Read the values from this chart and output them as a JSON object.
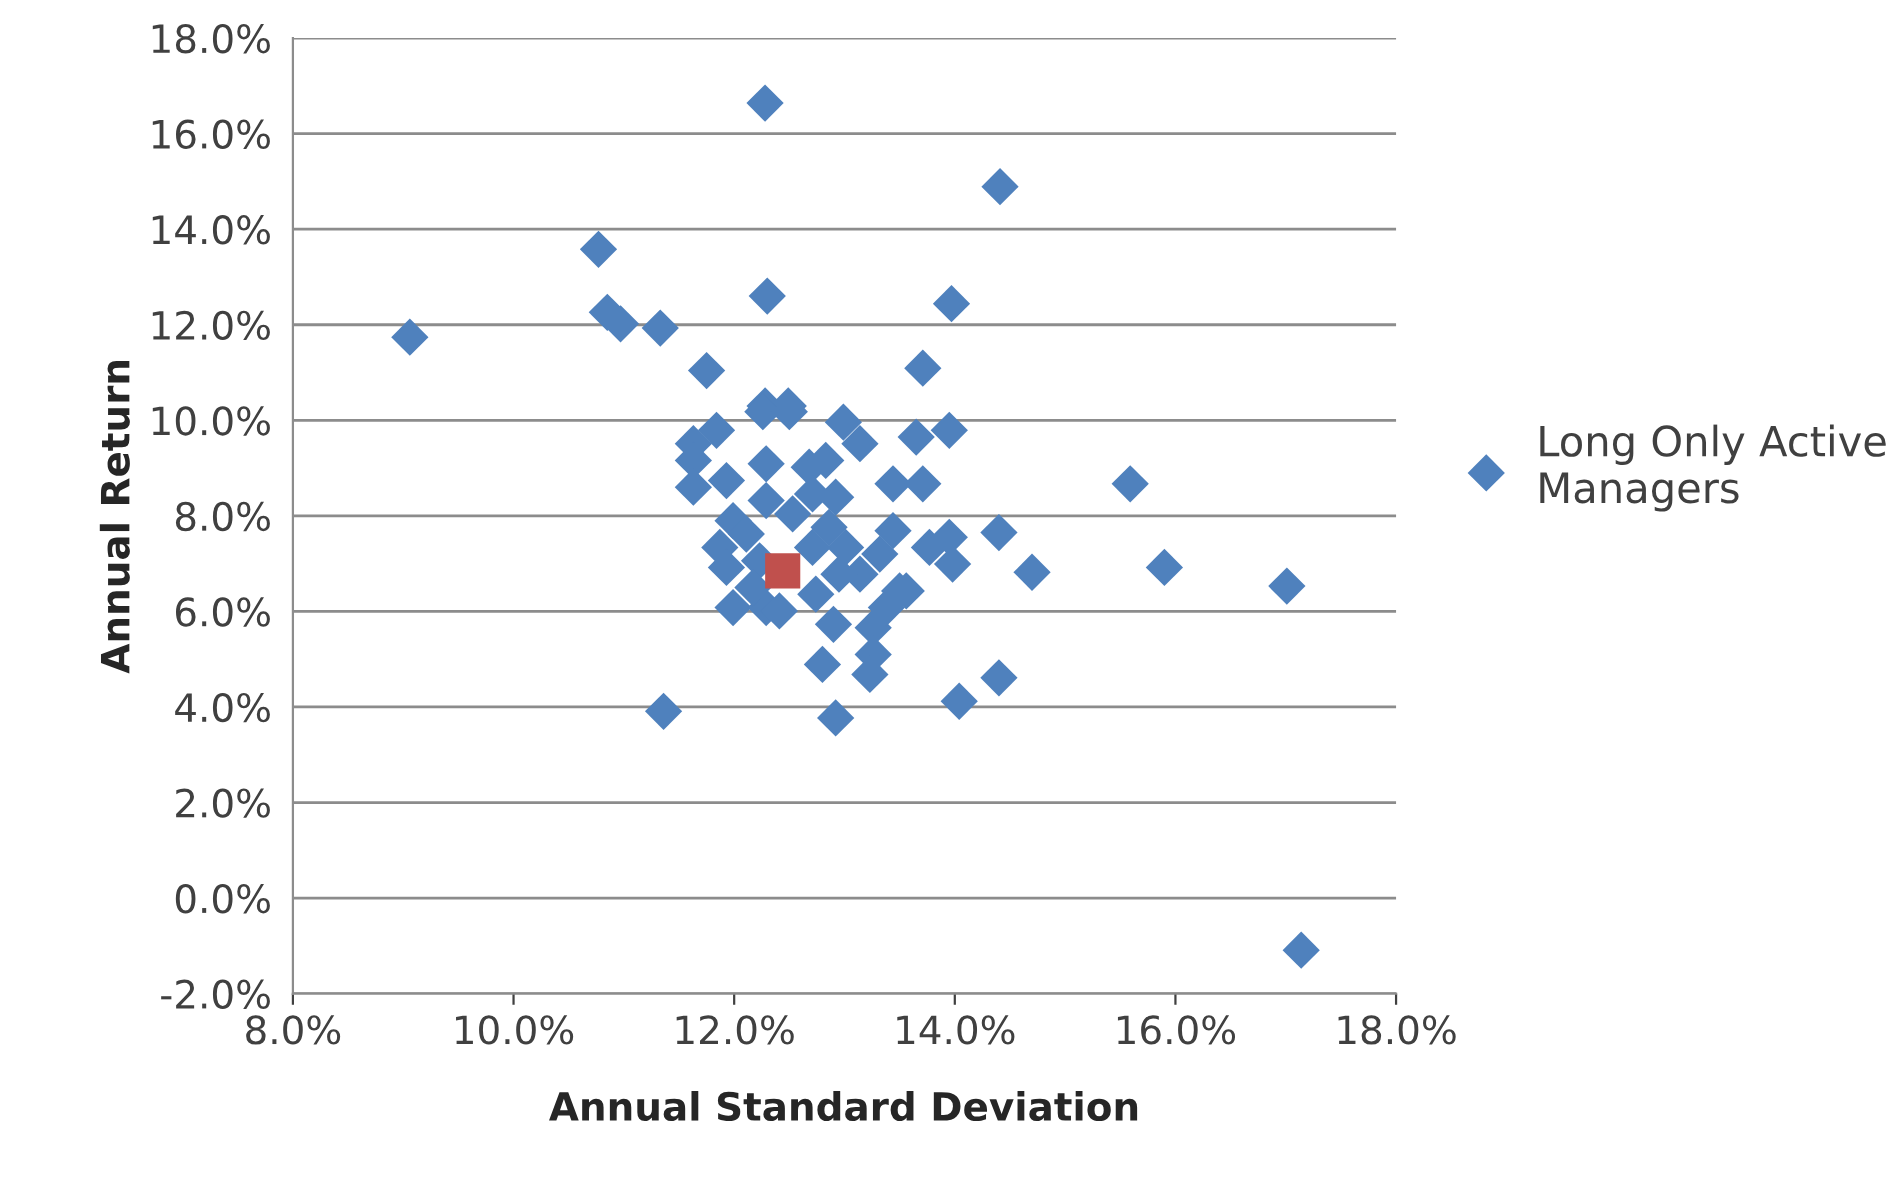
{
  "chart_data": {
    "type": "scatter",
    "xlabel": "Annual Standard Deviation",
    "ylabel": "Annual Return",
    "xlim": [
      8,
      18
    ],
    "ylim": [
      -2,
      18
    ],
    "xticks": [
      {
        "value": 8,
        "label": "8.0%"
      },
      {
        "value": 10,
        "label": "10.0%"
      },
      {
        "value": 12,
        "label": "12.0%"
      },
      {
        "value": 14,
        "label": "14.0%"
      },
      {
        "value": 16,
        "label": "16.0%"
      },
      {
        "value": 18,
        "label": "18.0%"
      }
    ],
    "yticks": [
      {
        "value": -2,
        "label": "-2.0%"
      },
      {
        "value": 0,
        "label": "0.0%"
      },
      {
        "value": 2,
        "label": "2.0%"
      },
      {
        "value": 4,
        "label": "4.0%"
      },
      {
        "value": 6,
        "label": "6.0%"
      },
      {
        "value": 8,
        "label": "8.0%"
      },
      {
        "value": 10,
        "label": "10.0%"
      },
      {
        "value": 12,
        "label": "12.0%"
      },
      {
        "value": 14,
        "label": "14.0%"
      },
      {
        "value": 16,
        "label": "16.0%"
      },
      {
        "value": 18,
        "label": "18.0%"
      }
    ],
    "grid": "y",
    "legend": "right",
    "series": [
      {
        "name": "Long Only Active Managers",
        "color": "#4f81bd",
        "marker": "diamond",
        "x": [
          12.28,
          14.41,
          10.77,
          9.06,
          10.85,
          10.97,
          11.33,
          12.3,
          13.97,
          11.75,
          13.71,
          12.28,
          12.49,
          11.84,
          12.26,
          12.5,
          12.99,
          13.14,
          13.65,
          13.95,
          11.63,
          11.63,
          11.63,
          12.29,
          12.68,
          12.83,
          13.44,
          13.71,
          11.93,
          12.29,
          12.92,
          11.99,
          11.87,
          11.93,
          12.11,
          12.53,
          12.71,
          12.86,
          13.01,
          13.14,
          13.44,
          13.32,
          13.5,
          13.77,
          13.95,
          13.98,
          14.4,
          14.7,
          11.99,
          12.29,
          12.41,
          12.74,
          12.9,
          13.26,
          13.38,
          13.56,
          12.8,
          13.26,
          13.23,
          14.4,
          14.04,
          12.92,
          11.36,
          12.23,
          12.53,
          12.95,
          12.71,
          12.17,
          15.59,
          15.9,
          17.01,
          17.14
        ],
        "values": [
          16.64,
          14.89,
          13.58,
          11.74,
          12.26,
          12.02,
          11.93,
          12.6,
          12.44,
          11.04,
          11.09,
          10.3,
          10.3,
          9.79,
          10.18,
          10.18,
          9.96,
          9.51,
          9.65,
          9.79,
          9.51,
          9.16,
          8.6,
          9.09,
          9.02,
          9.16,
          8.67,
          8.67,
          8.74,
          8.32,
          8.39,
          7.9,
          7.34,
          6.92,
          7.62,
          8.04,
          8.46,
          7.76,
          7.34,
          6.78,
          7.69,
          7.2,
          6.43,
          7.34,
          7.55,
          6.99,
          7.65,
          6.82,
          6.08,
          6.08,
          6.01,
          6.36,
          5.73,
          5.66,
          6.08,
          6.43,
          4.89,
          5.1,
          4.68,
          4.61,
          4.12,
          3.77,
          3.91,
          7.06,
          null,
          6.78,
          7.34,
          6.5,
          8.67,
          6.92,
          6.53,
          -1.09
        ]
      },
      {
        "color": "#c0504d",
        "marker": "square",
        "x": [
          12.44
        ],
        "values": [
          6.85
        ]
      }
    ]
  }
}
